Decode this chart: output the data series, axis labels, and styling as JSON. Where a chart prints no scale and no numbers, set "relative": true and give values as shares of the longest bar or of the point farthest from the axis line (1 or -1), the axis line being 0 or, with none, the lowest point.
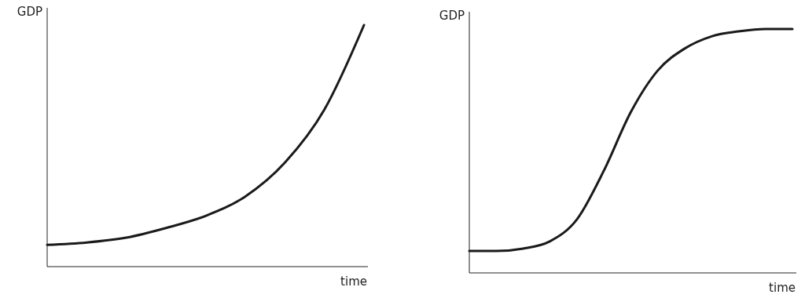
{
  "chart_data": [
    {
      "type": "line",
      "relative": true,
      "ylabel": "GDP",
      "xlabel": "time",
      "categories": [
        null,
        null,
        null,
        null,
        null,
        null,
        null,
        null,
        null
      ],
      "series": [
        {
          "color": "#1a1a1a",
          "values": [
            0.09,
            0.1,
            0.12,
            0.16,
            0.21,
            0.29,
            0.43,
            0.65,
            1
          ]
        }
      ]
    },
    {
      "type": "line",
      "relative": true,
      "ylabel": "GDP",
      "xlabel": "time",
      "categories": [
        null,
        null,
        null,
        null,
        null,
        null,
        null,
        null,
        null,
        null,
        null,
        null,
        null
      ],
      "series": [
        {
          "color": "#1a1a1a",
          "values": [
            0.09,
            0.09,
            0.1,
            0.13,
            0.22,
            0.42,
            0.66,
            0.83,
            0.92,
            0.97,
            0.99,
            1,
            1
          ]
        }
      ]
    }
  ]
}
